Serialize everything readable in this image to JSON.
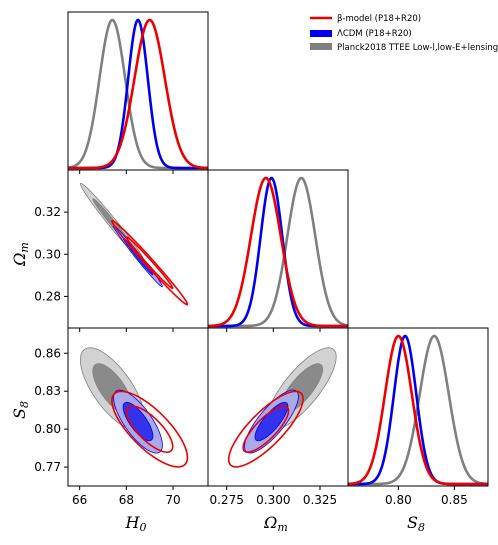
{
  "chart_data": {
    "type": "corner",
    "parameters": [
      {
        "key": "H0",
        "label_main": "H",
        "label_sub": "0"
      },
      {
        "key": "Om",
        "label_main": "Ω",
        "label_sub": "m"
      },
      {
        "key": "S8",
        "label_main": "S",
        "label_sub": "8"
      }
    ],
    "ranges": {
      "H0": [
        65.5,
        71.5
      ],
      "Om": [
        0.265,
        0.34
      ],
      "S8": [
        0.755,
        0.88
      ]
    },
    "ticks": {
      "H0": {
        "values": [
          66,
          68,
          70
        ],
        "labels": [
          "66",
          "68",
          "70"
        ]
      },
      "Om": {
        "values": [
          0.275,
          0.3,
          0.325
        ],
        "labels": [
          "0.275",
          "0.300",
          "0.325"
        ]
      },
      "Om_y": {
        "values": [
          0.28,
          0.3,
          0.32
        ],
        "labels": [
          "0.28",
          "0.30",
          "0.32"
        ]
      },
      "S8": {
        "values": [
          0.8,
          0.85
        ],
        "labels": [
          "0.80",
          "0.85"
        ]
      },
      "S8_y": {
        "values": [
          0.77,
          0.8,
          0.83,
          0.86
        ],
        "labels": [
          "0.77",
          "0.80",
          "0.83",
          "0.86"
        ]
      }
    },
    "legend": {
      "placement": "top-right",
      "entries": [
        {
          "label": "β-model (P18+R20)",
          "color": "#ee0000",
          "style": "line"
        },
        {
          "label": "ΛCDM (P18+R20)",
          "color": "#0000ee",
          "style": "patch"
        },
        {
          "label": "Planck2018 TTEE Low-l,low-E+lensing",
          "color": "#808080",
          "style": "patch"
        }
      ]
    },
    "series": [
      {
        "id": "planck",
        "color": "#808080",
        "fill_inner": "#8a8a8a",
        "fill_outer": "#d2d2d2",
        "style": "filled",
        "mean": {
          "H0": 67.4,
          "Om": 0.315,
          "S8": 0.832
        },
        "sigma": {
          "H0": 0.55,
          "Om": 0.0075,
          "S8": 0.013
        },
        "corr": {
          "H0_Om": -0.985,
          "H0_S8": -0.7,
          "Om_S8": 0.78
        }
      },
      {
        "id": "lcdm",
        "color": "#0000ee",
        "fill_inner": "#3333ee",
        "fill_outer": "#aaaae8",
        "style": "filled",
        "mean": {
          "H0": 68.5,
          "Om": 0.299,
          "S8": 0.806
        },
        "sigma": {
          "H0": 0.42,
          "Om": 0.0058,
          "S8": 0.01
        },
        "corr": {
          "H0_Om": -0.99,
          "H0_S8": -0.75,
          "Om_S8": 0.8
        }
      },
      {
        "id": "beta",
        "color": "#ee0000",
        "style": "line",
        "mean": {
          "H0": 69.0,
          "Om": 0.296,
          "S8": 0.8
        },
        "sigma": {
          "H0": 0.65,
          "Om": 0.008,
          "S8": 0.012
        },
        "corr": {
          "H0_Om": -0.99,
          "H0_S8": -0.75,
          "Om_S8": 0.8
        }
      }
    ]
  }
}
